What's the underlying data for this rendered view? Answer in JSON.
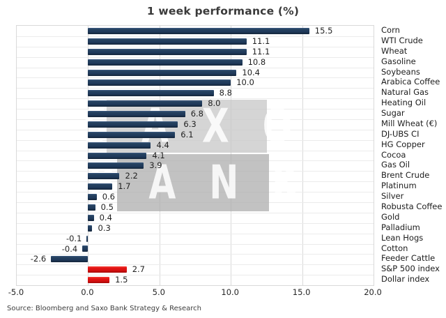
{
  "source_note": "Source: Bloomberg and Saxo Bank Strategy & Research",
  "watermark": {
    "line1": "S A X O",
    "line2": "B A N K"
  },
  "colors": {
    "bar_default": "#1f3a5c",
    "bar_highlight": "#e21313",
    "gridline": "#d9d9d9",
    "row_separator": "#ebebeb",
    "text": "#1f1f1f"
  },
  "chart_data": {
    "type": "bar",
    "orientation": "horizontal",
    "title": "1 week performance (%)",
    "categories": [
      "Corn",
      "WTI Crude",
      "Wheat",
      "Gasoline",
      "Soybeans",
      "Arabica Coffee",
      "Natural Gas",
      "Heating Oil",
      "Sugar",
      "Mill Wheat (€)",
      "DJ-UBS CI",
      "HG Copper",
      "Cocoa",
      "Gas Oil",
      "Brent Crude",
      "Platinum",
      "Silver",
      "Robusta Coffee",
      "Gold",
      "Palladium",
      "Lean Hogs",
      "Cotton",
      "Feeder Cattle",
      "S&P 500 index",
      "Dollar index"
    ],
    "values": [
      15.5,
      11.1,
      11.1,
      10.8,
      10.4,
      10.0,
      8.8,
      8.0,
      6.8,
      6.3,
      6.1,
      4.4,
      4.1,
      3.9,
      2.2,
      1.7,
      0.6,
      0.5,
      0.4,
      0.3,
      -0.1,
      -0.4,
      -2.6,
      2.7,
      1.5
    ],
    "highlight": {
      "categories": [
        "S&P 500 index",
        "Dollar index"
      ],
      "color": "#e21313"
    },
    "xlim": [
      -5,
      20
    ],
    "xticks": [
      -5,
      0,
      5,
      10,
      15,
      20
    ],
    "xtick_labels": [
      "-5.0",
      "0.0",
      "5.0",
      "10.0",
      "15.0",
      "20.0"
    ],
    "grid": true,
    "value_labels": true,
    "legend": false,
    "xlabel": "",
    "ylabel": ""
  }
}
